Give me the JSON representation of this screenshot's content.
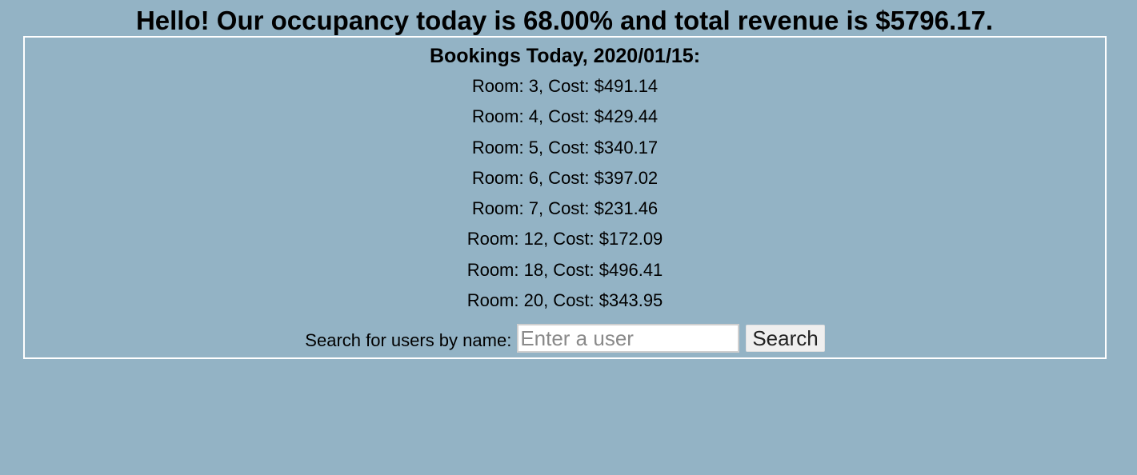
{
  "header": {
    "headline": "Hello! Our occupancy today is 68.00% and total revenue is $5796.17."
  },
  "bookings_panel": {
    "title": "Bookings Today, 2020/01/15:",
    "bookings": [
      "Room: 3, Cost: $491.14",
      "Room: 4, Cost: $429.44",
      "Room: 5, Cost: $340.17",
      "Room: 6, Cost: $397.02",
      "Room: 7, Cost: $231.46",
      "Room: 12, Cost: $172.09",
      "Room: 18, Cost: $496.41",
      "Room: 20, Cost: $343.95"
    ]
  },
  "search": {
    "label": "Search for users by name:",
    "placeholder": "Enter a user",
    "value": "",
    "button_label": "Search"
  },
  "colors": {
    "background": "#93b3c5",
    "panel_border": "#ffffff",
    "text": "#000000"
  }
}
